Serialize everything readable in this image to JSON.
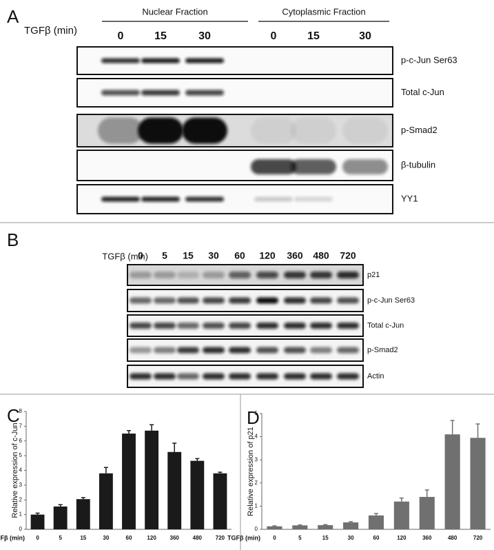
{
  "panel_a": {
    "label": "A",
    "treatment_label": "TGFβ (min)",
    "groups": [
      {
        "name": "Nuclear Fraction",
        "lanes": [
          "0",
          "15",
          "30"
        ]
      },
      {
        "name": "Cytoplasmic Fraction",
        "lanes": [
          "0",
          "15",
          "30"
        ]
      }
    ],
    "rows": [
      "p-c-Jun Ser63",
      "Total c-Jun",
      "p-Smad2",
      "β-tubulin",
      "YY1"
    ]
  },
  "panel_b": {
    "label": "B",
    "treatment_label": "TGFβ (min)",
    "lanes": [
      "0",
      "5",
      "15",
      "30",
      "60",
      "120",
      "360",
      "480",
      "720"
    ],
    "rows": [
      "p21",
      "p-c-Jun Ser63",
      "Total c-Jun",
      "p-Smad2",
      "Actin"
    ]
  },
  "chart_data": [
    {
      "type": "bar",
      "panel_label": "C",
      "ylabel": "Relative expression of c-Jun",
      "xlabel": "TGFβ (min)",
      "categories": [
        "0",
        "5",
        "15",
        "30",
        "60",
        "120",
        "360",
        "480",
        "720"
      ],
      "values": [
        1.0,
        1.55,
        2.05,
        3.8,
        6.5,
        6.7,
        5.25,
        4.65,
        3.8
      ],
      "errors": [
        0.1,
        0.12,
        0.1,
        0.4,
        0.2,
        0.4,
        0.6,
        0.15,
        0.08
      ],
      "color": "#1a1a1a",
      "ylim": [
        0,
        8
      ],
      "yticks": [
        0,
        1,
        2,
        3,
        4,
        5,
        6,
        7,
        8
      ]
    },
    {
      "type": "bar",
      "panel_label": "D",
      "ylabel": "Relative expression of p21",
      "xlabel": "TGFβ (min)",
      "categories": [
        "0",
        "5",
        "15",
        "30",
        "60",
        "120",
        "360",
        "480",
        "720"
      ],
      "values": [
        0.13,
        0.17,
        0.18,
        0.3,
        0.6,
        1.2,
        1.4,
        4.1,
        3.95
      ],
      "errors": [
        0.02,
        0.02,
        0.02,
        0.03,
        0.08,
        0.15,
        0.3,
        0.6,
        0.6
      ],
      "color": "#707070",
      "ylim": [
        0,
        5
      ],
      "yticks": [
        0,
        1,
        2,
        3,
        4,
        5
      ]
    }
  ]
}
